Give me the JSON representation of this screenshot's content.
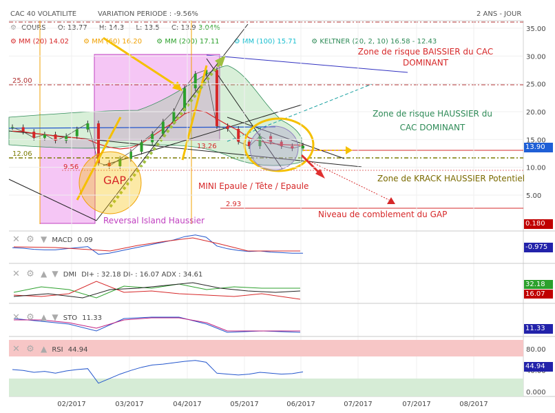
{
  "header": {
    "title": "CAC 40 VOLATILITE",
    "variation": "VARIATION PERIODE : -9.56%",
    "period": "2 ANS - JOUR"
  },
  "legend_row1": {
    "cours": "COURS",
    "open": "O: 13.77",
    "high": "H: 14.3",
    "low": "L: 13.5",
    "close": "C: 13.9",
    "change": "3.04%"
  },
  "legend_row2": {
    "mm20": "MM (20) 14.02",
    "mm60": "MM (60) 16.20",
    "mm200": "MM (200) 17.11",
    "mm100": "MM (100) 15.71",
    "keltner": "KELTNER (20, 2, 10) 16.58 - 12.43"
  },
  "colors": {
    "mm20": "#d62728",
    "mm60": "#f0a000",
    "mm200": "#2ca02c",
    "mm100": "#17becf",
    "keltner": "#2e8b57",
    "price_label": "#1f5fd6",
    "grid": "#e6e6e6",
    "rsi_band": "#f7c6c6",
    "rsi_low_band": "#d6ecd6"
  },
  "annotations": {
    "bear_zone": "Zone de risque BAISSIER du CAC DOMINANT",
    "bull_zone": "Zone de risque HAUSSIER du CAC DOMINANT",
    "krack_zone": "Zone de KRACK HAUSSIER Potentiel",
    "mini_hs": "MINI Epaule / Tête / Epaule",
    "gap_fill": "Niveau de comblement du GAP",
    "gap": "GAP",
    "reversal": "Reversal Island Haussier",
    "lvl_25": "25.00",
    "lvl_12": "12.06",
    "lvl_956": "9.56",
    "lvl_1326": "13.26",
    "lvl_293": "2.93"
  },
  "price_badges": {
    "last": "13.90",
    "low_level": "0.180"
  },
  "macd": {
    "label": "MACD",
    "value": "0.09",
    "badge": "-0.975"
  },
  "dmi": {
    "label": "DMI",
    "value": "DI+ : 32.18 DI- : 16.07 ADX : 34.61",
    "badge_plus": "32.18",
    "badge_minus": "16.07"
  },
  "sto": {
    "label": "STO",
    "value": "11.33",
    "badge": "11.33"
  },
  "rsi": {
    "label": "RSI",
    "value": "44.94",
    "badge": "44.94",
    "ticks": [
      "80.00",
      "40.00",
      "0.000"
    ]
  },
  "chart_data": {
    "type": "line",
    "title": "CAC 40 VOLATILITE",
    "xlabel": "",
    "ylabel": "",
    "x_ticks": [
      "02/2017",
      "03/2017",
      "04/2017",
      "05/2017",
      "06/2017",
      "07/2017",
      "07/2017",
      "08/2017"
    ],
    "y_ticks": [
      35,
      30,
      25,
      20,
      15,
      10,
      5
    ],
    "y_tick_labels": [
      "35.00",
      "30.00",
      "25.00",
      "20.00",
      "15.00",
      "10.00",
      "5.00"
    ],
    "ylim": [
      0,
      36
    ],
    "grid": true,
    "x": [
      "01/06",
      "01/12",
      "01/18",
      "01/24",
      "01/30",
      "02/03",
      "02/09",
      "02/15",
      "02/21",
      "02/27",
      "03/03",
      "03/09",
      "03/15",
      "03/21",
      "03/27",
      "03/31",
      "04/06",
      "04/12",
      "04/18",
      "04/24",
      "04/28",
      "05/04",
      "05/10",
      "05/16",
      "05/22",
      "05/26",
      "06/01",
      "06/06"
    ],
    "series": [
      {
        "values": [
          17.2,
          16.4,
          15.3,
          15.9,
          14.8,
          15.6,
          16.8,
          17.9,
          10.8,
          10.2,
          11.5,
          12.8,
          14.5,
          16.0,
          18.2,
          20.1,
          24.2,
          26.8,
          27.5,
          17.4,
          16.9,
          14.6,
          13.8,
          15.6,
          14.6,
          13.8,
          13.4,
          13.9
        ]
      },
      {
        "values": [
          16.5,
          16.4,
          16.1,
          15.9,
          15.6,
          15.4,
          15.3,
          15.0,
          14.2,
          13.6,
          13.3,
          13.5,
          14.3,
          15.6,
          16.9,
          18.1,
          19.6,
          20.3,
          19.9,
          18.7,
          17.6,
          16.6,
          15.3,
          14.7,
          14.3,
          14.1,
          14.0,
          14.0
        ]
      }
    ],
    "macd_values": [
      0.1,
      0.0,
      -0.2,
      -0.3,
      -0.3,
      -0.1,
      0.1,
      0.3,
      -1.1,
      -0.9,
      -0.5,
      -0.1,
      0.3,
      0.7,
      1.1,
      1.5,
      2.1,
      2.4,
      2.0,
      0.4,
      -0.1,
      -0.4,
      -0.6,
      -0.5,
      -0.7,
      -0.8,
      -0.9,
      -0.9
    ],
    "rsi_values": [
      50,
      48,
      44,
      46,
      42,
      47,
      50,
      52,
      20,
      30,
      40,
      48,
      55,
      60,
      62,
      65,
      68,
      70,
      66,
      42,
      40,
      38,
      40,
      44,
      42,
      40,
      41,
      44.9
    ]
  }
}
